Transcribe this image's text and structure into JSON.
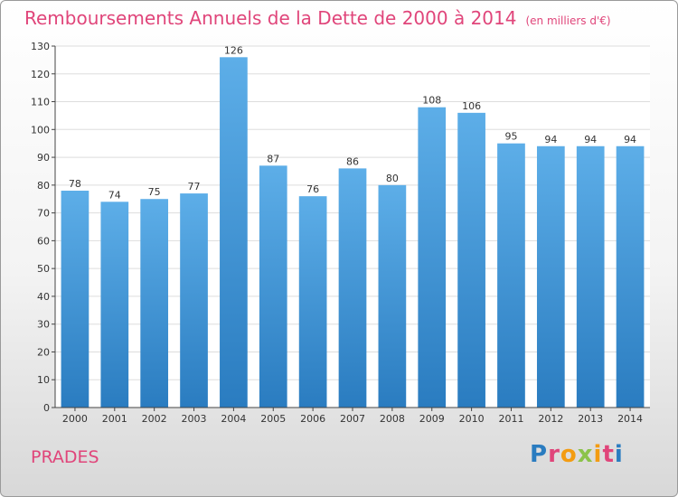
{
  "header": {
    "title": "Remboursements Annuels de la Dette de 2000 à 2014",
    "subtitle": "(en milliers d'€)"
  },
  "footer": {
    "town": "PRADES",
    "brand": "Proxiti"
  },
  "colors": {
    "title": "#e0457a",
    "bar_top": "#5daee8",
    "bar_bottom": "#2a7cc0",
    "grid": "#dddddd",
    "axis": "#444444",
    "brand_letters": [
      "#2a7cc0",
      "#e0457a",
      "#f39c12",
      "#8bc34a",
      "#f39c12",
      "#e0457a",
      "#2a7cc0"
    ]
  },
  "chart_data": {
    "type": "bar",
    "categories": [
      "2000",
      "2001",
      "2002",
      "2003",
      "2004",
      "2005",
      "2006",
      "2007",
      "2008",
      "2009",
      "2010",
      "2011",
      "2012",
      "2013",
      "2014"
    ],
    "values": [
      78,
      74,
      75,
      77,
      126,
      87,
      76,
      86,
      80,
      108,
      106,
      95,
      94,
      94,
      94
    ],
    "title": "Remboursements Annuels de la Dette de 2000 à 2014",
    "ylim": [
      0,
      130
    ],
    "yticks": [
      0,
      10,
      20,
      30,
      40,
      50,
      60,
      70,
      80,
      90,
      100,
      110,
      120,
      130
    ],
    "grid": true,
    "data_labels": true
  }
}
